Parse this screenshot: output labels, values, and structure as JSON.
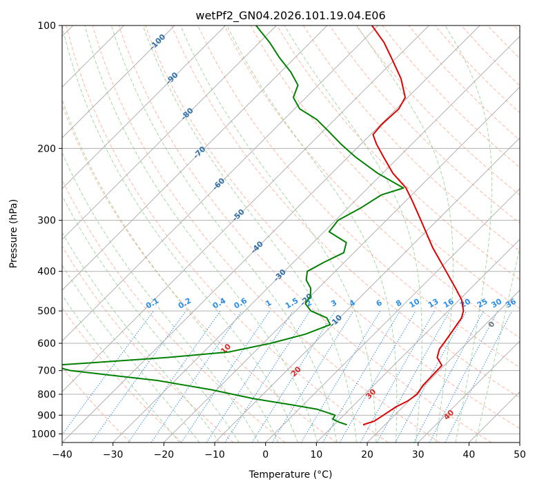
{
  "chart_data": {
    "type": "line",
    "title": "wetPf2_GN04.2026.101.19.04.E06",
    "xlabel": "Temperature (°C)",
    "ylabel": "Pressure (hPa)",
    "xlim": [
      -40,
      50
    ],
    "ylim": [
      1050,
      100
    ],
    "skew": 1.0,
    "x_ticks": [
      -40,
      -30,
      -20,
      -10,
      0,
      10,
      20,
      30,
      40,
      50
    ],
    "y_ticks": [
      1000,
      900,
      800,
      700,
      600,
      500,
      400,
      300,
      200,
      100
    ],
    "grid": true,
    "series": [
      {
        "name": "Temperature",
        "color": "#e00000",
        "points": [
          [
            950,
            15.7
          ],
          [
            930,
            17.2
          ],
          [
            900,
            17.8
          ],
          [
            860,
            18.6
          ],
          [
            830,
            19.8
          ],
          [
            800,
            20.3
          ],
          [
            760,
            19.7
          ],
          [
            720,
            19.6
          ],
          [
            680,
            19.5
          ],
          [
            650,
            17.0
          ],
          [
            620,
            15.8
          ],
          [
            600,
            15.5
          ],
          [
            560,
            14.8
          ],
          [
            520,
            14.0
          ],
          [
            500,
            13.0
          ],
          [
            470,
            10.5
          ],
          [
            440,
            7.0
          ],
          [
            400,
            1.8
          ],
          [
            350,
            -5.5
          ],
          [
            300,
            -13.2
          ],
          [
            270,
            -18.5
          ],
          [
            250,
            -22.5
          ],
          [
            230,
            -28.0
          ],
          [
            210,
            -33.0
          ],
          [
            195,
            -37.0
          ],
          [
            185,
            -39.5
          ],
          [
            175,
            -39.8
          ],
          [
            160,
            -39.5
          ],
          [
            150,
            -40.5
          ],
          [
            135,
            -45.0
          ],
          [
            120,
            -51.0
          ],
          [
            110,
            -55.5
          ],
          [
            100,
            -61.2
          ]
        ]
      },
      {
        "name": "Dewpoint",
        "color": "#008000",
        "points": [
          [
            950,
            12.5
          ],
          [
            935,
            10.3
          ],
          [
            920,
            8.6
          ],
          [
            900,
            8.3
          ],
          [
            870,
            3.5
          ],
          [
            850,
            -2.0
          ],
          [
            820,
            -11.0
          ],
          [
            780,
            -21.0
          ],
          [
            740,
            -33.5
          ],
          [
            720,
            -43.0
          ],
          [
            700,
            -52.5
          ],
          [
            680,
            -57.5
          ],
          [
            670,
            -50.0
          ],
          [
            650,
            -36.0
          ],
          [
            630,
            -25.0
          ],
          [
            600,
            -18.5
          ],
          [
            570,
            -13.5
          ],
          [
            540,
            -10.5
          ],
          [
            520,
            -12.5
          ],
          [
            500,
            -17.0
          ],
          [
            480,
            -19.5
          ],
          [
            460,
            -20.0
          ],
          [
            440,
            -21.5
          ],
          [
            420,
            -24.0
          ],
          [
            400,
            -25.5
          ],
          [
            380,
            -24.0
          ],
          [
            360,
            -22.0
          ],
          [
            340,
            -23.5
          ],
          [
            320,
            -29.0
          ],
          [
            300,
            -29.5
          ],
          [
            280,
            -27.5
          ],
          [
            260,
            -26.0
          ],
          [
            250,
            -23.0
          ],
          [
            230,
            -31.0
          ],
          [
            210,
            -38.5
          ],
          [
            195,
            -44.0
          ],
          [
            180,
            -49.5
          ],
          [
            170,
            -53.5
          ],
          [
            160,
            -59.0
          ],
          [
            150,
            -62.5
          ],
          [
            140,
            -64.0
          ],
          [
            130,
            -68.0
          ],
          [
            120,
            -73.0
          ],
          [
            110,
            -78.0
          ],
          [
            100,
            -84.0
          ]
        ]
      }
    ],
    "isotherm_labels": [
      "-100",
      "-90",
      "-80",
      "-70",
      "-60",
      "-50",
      "-40",
      "-30",
      "-20",
      "-10"
    ],
    "mixing_ratio_labels": [
      "0.1",
      "0.2",
      "0.4",
      "0.6",
      "1",
      "1.5",
      "2",
      "3",
      "4",
      "6",
      "8",
      "10",
      "13",
      "16",
      "20",
      "25",
      "30",
      "36"
    ],
    "dry_adiabat_labels": [
      "10",
      "20",
      "30",
      "40"
    ],
    "moist_adiabat_labels": [
      "0"
    ]
  },
  "colors": {
    "grid": "#b0b0b0",
    "dry_adiabat": "#ffa48a",
    "moist_adiabat": "#7fc47f",
    "mixing_ratio": "#2a8ee8",
    "isotherm_label": "#2f6fa8"
  }
}
